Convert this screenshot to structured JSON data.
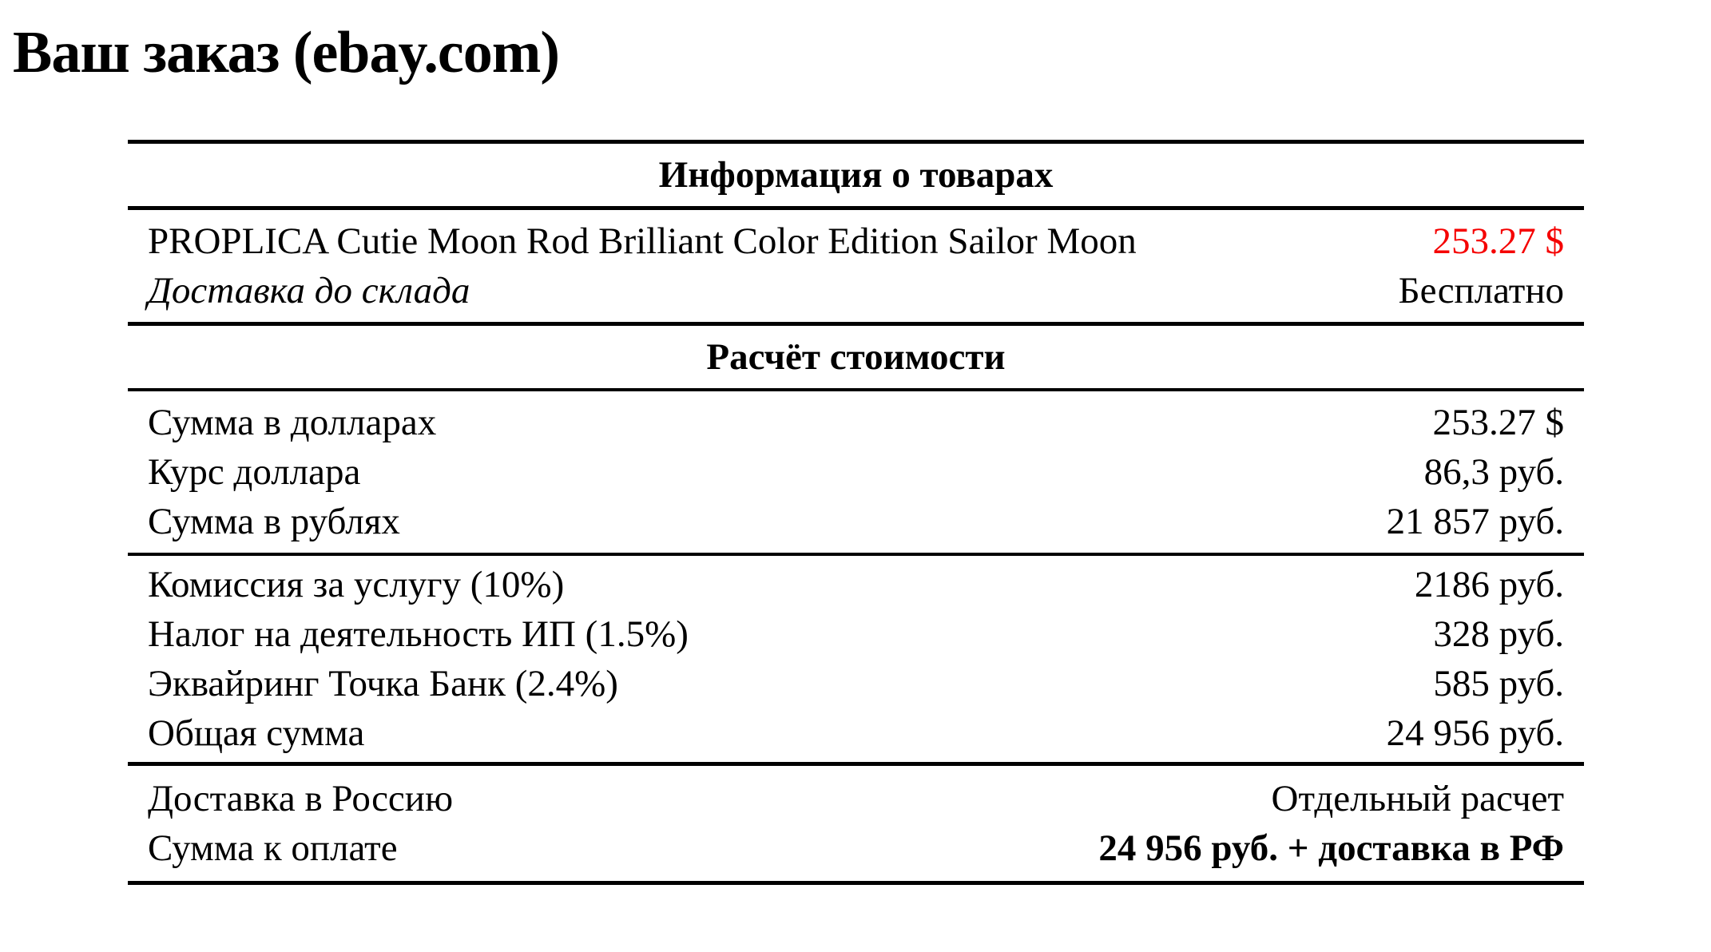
{
  "title": "Ваш заказ (ebay.com)",
  "colors": {
    "text": "#000000",
    "background": "#ffffff",
    "price_highlight_red": "#f50000"
  },
  "table": {
    "sections": {
      "product_info": {
        "header": "Информация о товарах",
        "rows": {
          "product": {
            "label": "PROPLICA Cutie Moon Rod Brilliant Color Edition Sailor Moon",
            "value": "253.27 $"
          },
          "warehouse_delivery": {
            "label": "Доставка до склада",
            "value": "Бесплатно"
          }
        }
      },
      "cost_calc": {
        "header": "Расчёт стоимости",
        "rows_currency": {
          "usd_sum": {
            "label": "Сумма в долларах",
            "value": "253.27 $"
          },
          "usd_rate": {
            "label": "Курс доллара",
            "value": "86,3 руб."
          },
          "rub_sum": {
            "label": "Сумма в рублях",
            "value": "21 857 руб."
          }
        },
        "rows_fees": {
          "service_fee": {
            "label": "Комиссия за услугу (10%)",
            "value": "2186 руб."
          },
          "tax": {
            "label": "Налог на деятельность ИП (1.5%)",
            "value": "328 руб."
          },
          "acquiring": {
            "label": "Эквайринг Точка Банк (2.4%)",
            "value": "585 руб."
          },
          "total": {
            "label": "Общая сумма",
            "value": "24 956 руб."
          }
        },
        "rows_final": {
          "russia_delivery": {
            "label": "Доставка в Россию",
            "value": "Отдельный расчет"
          },
          "amount_due": {
            "label": "Сумма к оплате",
            "value": "24 956 руб. + доставка в РФ"
          }
        }
      }
    }
  }
}
